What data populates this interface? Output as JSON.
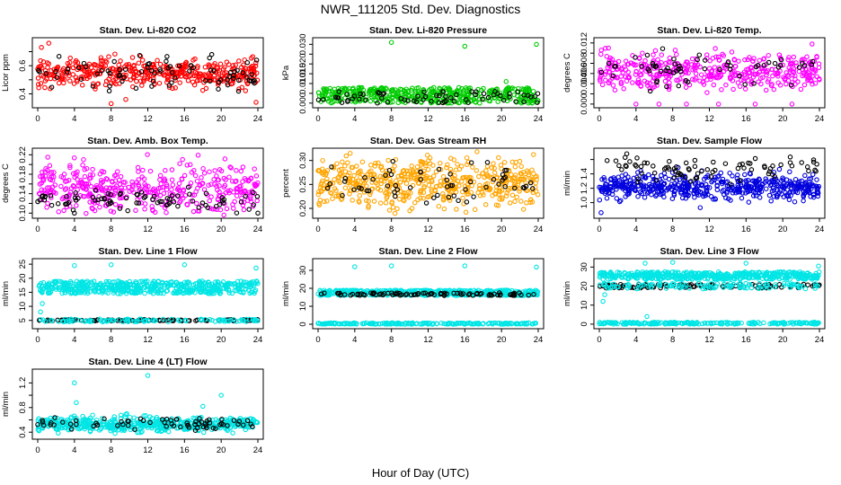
{
  "figure": {
    "title": "NWR_111205  Std. Dev. Diagnostics",
    "xlabel": "Hour of Day (UTC)"
  },
  "chart_data": [
    {
      "type": "scatter",
      "title": "Stan. Dev. Li-820 CO2",
      "ylabel": "Licor ppm",
      "xlim": [
        0,
        24
      ],
      "ylim": [
        0.32,
        0.78
      ],
      "xticks": [
        "0",
        "4",
        "8",
        "12",
        "16",
        "20",
        "24"
      ],
      "yticks": [
        0.4,
        0.5,
        0.6,
        0.7
      ],
      "ytick_labels": [
        "0.4",
        "",
        "0.6",
        ""
      ],
      "series": [
        {
          "color": "#ff0000",
          "center": 0.55,
          "spread": 0.05,
          "count": 420
        },
        {
          "color": "#000000",
          "center": 0.54,
          "spread": 0.06,
          "count": 80
        }
      ],
      "outliers": [
        {
          "x": 0.4,
          "y": 0.73,
          "color": "#ff0000"
        },
        {
          "x": 1.2,
          "y": 0.76,
          "color": "#ff0000"
        },
        {
          "x": 8.0,
          "y": 0.33,
          "color": "#ff0000"
        },
        {
          "x": 7.8,
          "y": 0.42,
          "color": "#000000"
        },
        {
          "x": 23.8,
          "y": 0.34,
          "color": "#ff0000"
        },
        {
          "x": 9.6,
          "y": 0.36,
          "color": "#ff0000"
        }
      ]
    },
    {
      "type": "scatter",
      "title": "Stan. Dev. Li-820 Pressure",
      "ylabel": "kPa",
      "xlim": [
        0,
        24
      ],
      "ylim": [
        -0.001,
        0.032
      ],
      "xticks": [
        "0",
        "4",
        "8",
        "12",
        "16",
        "20",
        "24"
      ],
      "yticks": [
        0.0,
        0.005,
        0.01,
        0.015,
        0.02,
        0.025,
        0.03
      ],
      "ytick_labels": [
        "0.000",
        "",
        "0.010",
        "0.015",
        "0.020",
        "",
        "0.030"
      ],
      "series": [
        {
          "color": "#00cc00",
          "band": [
            0.0,
            0.008
          ],
          "count": 420
        },
        {
          "color": "#000000",
          "band": [
            0.0,
            0.006
          ],
          "count": 70
        }
      ],
      "outliers": [
        {
          "x": 8.0,
          "y": 0.031,
          "color": "#00cc00"
        },
        {
          "x": 16.0,
          "y": 0.029,
          "color": "#00cc00"
        },
        {
          "x": 23.8,
          "y": 0.03,
          "color": "#00cc00"
        },
        {
          "x": 20.5,
          "y": 0.011,
          "color": "#00cc00"
        }
      ]
    },
    {
      "type": "scatter",
      "title": "Stan. Dev. Li-820 Temp.",
      "ylabel": "degrees C",
      "xlim": [
        0,
        24
      ],
      "ylim": [
        -0.0002,
        0.0125
      ],
      "xticks": [
        "0",
        "4",
        "8",
        "12",
        "16",
        "20",
        "24"
      ],
      "yticks": [
        0.0,
        0.002,
        0.004,
        0.006,
        0.008,
        0.01,
        0.012
      ],
      "ytick_labels": [
        "0.000",
        "",
        "0.004",
        "0.006",
        "0.008",
        "",
        "0.012"
      ],
      "series": [
        {
          "color": "#ff00ff",
          "center": 0.0065,
          "spread": 0.0018,
          "count": 420
        },
        {
          "color": "#000000",
          "center": 0.0065,
          "spread": 0.0015,
          "count": 60
        }
      ],
      "outliers": [
        {
          "x": 4.0,
          "y": 0.0,
          "color": "#ff00ff"
        },
        {
          "x": 6.5,
          "y": 0.0,
          "color": "#ff00ff"
        },
        {
          "x": 9.5,
          "y": 0.0,
          "color": "#ff00ff"
        },
        {
          "x": 13.0,
          "y": 0.0,
          "color": "#ff00ff"
        },
        {
          "x": 17.0,
          "y": 0.0,
          "color": "#ff00ff"
        },
        {
          "x": 21.0,
          "y": 0.0,
          "color": "#ff00ff"
        },
        {
          "x": 23.2,
          "y": 0.0118,
          "color": "#ff00ff"
        },
        {
          "x": 1.0,
          "y": 0.011,
          "color": "#ff00ff"
        }
      ]
    },
    {
      "type": "scatter",
      "title": "Stan. Dev. Amb. Box Temp.",
      "ylabel": "degrees C",
      "xlim": [
        0,
        24
      ],
      "ylim": [
        0.095,
        0.228
      ],
      "xticks": [
        "0",
        "4",
        "8",
        "12",
        "16",
        "20",
        "24"
      ],
      "yticks": [
        0.1,
        0.12,
        0.14,
        0.16,
        0.18,
        0.2,
        0.22
      ],
      "ytick_labels": [
        "0.10",
        "",
        "0.14",
        "",
        "0.18",
        "",
        "0.22"
      ],
      "series": [
        {
          "color": "#ff00ff",
          "center": 0.15,
          "spread": 0.025,
          "count": 420
        },
        {
          "color": "#000000",
          "center": 0.125,
          "spread": 0.01,
          "count": 80
        }
      ],
      "outliers": [
        {
          "x": 1.1,
          "y": 0.215,
          "color": "#ff00ff"
        },
        {
          "x": 5.0,
          "y": 0.21,
          "color": "#ff00ff"
        },
        {
          "x": 4.0,
          "y": 0.1,
          "color": "#000000"
        },
        {
          "x": 24.0,
          "y": 0.1,
          "color": "#000000"
        }
      ]
    },
    {
      "type": "scatter",
      "title": "Stan. Dev. Gas Stream RH",
      "ylabel": "percent",
      "xlim": [
        0,
        24
      ],
      "ylim": [
        0.185,
        0.32
      ],
      "xticks": [
        "0",
        "4",
        "8",
        "12",
        "16",
        "20",
        "24"
      ],
      "yticks": [
        0.2,
        0.25,
        0.3
      ],
      "ytick_labels": [
        "0.20",
        "0.25",
        "0.30"
      ],
      "series": [
        {
          "color": "#ffa500",
          "center": 0.255,
          "spread": 0.025,
          "count": 520
        },
        {
          "color": "#000000",
          "center": 0.255,
          "spread": 0.02,
          "count": 60
        }
      ],
      "outliers": [
        {
          "x": 0.5,
          "y": 0.3,
          "color": "#ffa500"
        },
        {
          "x": 3.5,
          "y": 0.315,
          "color": "#ffa500"
        },
        {
          "x": 7.8,
          "y": 0.196,
          "color": "#ffa500"
        },
        {
          "x": 10.0,
          "y": 0.195,
          "color": "#ffa500"
        },
        {
          "x": 22.4,
          "y": 0.198,
          "color": "#ffa500"
        }
      ]
    },
    {
      "type": "scatter",
      "title": "Stan. Dev. Sample Flow",
      "ylabel": "ml/min",
      "xlim": [
        0,
        24
      ],
      "ylim": [
        0.82,
        1.72
      ],
      "xticks": [
        "0",
        "4",
        "8",
        "12",
        "16",
        "20",
        "24"
      ],
      "yticks": [
        1.0,
        1.2,
        1.4,
        1.6
      ],
      "ytick_labels": [
        "1.0",
        "1.2",
        "1.4",
        ""
      ],
      "series": [
        {
          "color": "#0000dd",
          "center": 1.22,
          "spread": 0.09,
          "count": 520
        },
        {
          "color": "#000000",
          "center": 1.47,
          "spread": 0.08,
          "count": 80
        }
      ],
      "outliers": [
        {
          "x": 0.2,
          "y": 0.86,
          "color": "#0000dd"
        },
        {
          "x": 3.0,
          "y": 1.68,
          "color": "#000000"
        },
        {
          "x": 11.0,
          "y": 0.93,
          "color": "#0000dd"
        }
      ]
    },
    {
      "type": "scatter",
      "title": "Stan. Dev. Line 1 Flow",
      "ylabel": "ml/min",
      "xlim": [
        0,
        24
      ],
      "ylim": [
        3,
        26
      ],
      "xticks": [
        "0",
        "4",
        "8",
        "12",
        "16",
        "20",
        "24"
      ],
      "yticks": [
        5,
        10,
        15,
        20,
        25
      ],
      "ytick_labels": [
        "5",
        "10",
        "15",
        "20",
        "25"
      ],
      "series": [
        {
          "color": "#00e5e5",
          "band": [
            14.5,
            19.0
          ],
          "count": 520
        },
        {
          "color": "#000000",
          "band": [
            4.8,
            5.3
          ],
          "count": 100
        },
        {
          "color": "#00e5e5",
          "band": [
            4.5,
            5.5
          ],
          "count": 100
        }
      ],
      "outliers": [
        {
          "x": 4.0,
          "y": 24.5,
          "color": "#00e5e5"
        },
        {
          "x": 8.0,
          "y": 24.8,
          "color": "#00e5e5"
        },
        {
          "x": 16.0,
          "y": 24.8,
          "color": "#00e5e5"
        },
        {
          "x": 23.8,
          "y": 23.6,
          "color": "#00e5e5"
        },
        {
          "x": 0.3,
          "y": 8.0,
          "color": "#00e5e5"
        },
        {
          "x": 0.5,
          "y": 11.0,
          "color": "#00e5e5"
        }
      ]
    },
    {
      "type": "scatter",
      "title": "Stan. Dev. Line 2 Flow",
      "ylabel": "ml/min",
      "xlim": [
        0,
        24
      ],
      "ylim": [
        -1,
        35
      ],
      "xticks": [
        "0",
        "4",
        "8",
        "12",
        "16",
        "20",
        "24"
      ],
      "yticks": [
        0,
        10,
        20,
        30
      ],
      "ytick_labels": [
        "0",
        "10",
        "20",
        "30"
      ],
      "series": [
        {
          "color": "#00e5e5",
          "band": [
            16.0,
            19.0
          ],
          "count": 500
        },
        {
          "color": "#000000",
          "band": [
            16.0,
            17.5
          ],
          "count": 90
        },
        {
          "color": "#00e5e5",
          "band": [
            0.0,
            0.8
          ],
          "count": 200
        }
      ],
      "outliers": [
        {
          "x": 4.0,
          "y": 32.0,
          "color": "#00e5e5"
        },
        {
          "x": 8.0,
          "y": 32.5,
          "color": "#00e5e5"
        },
        {
          "x": 16.0,
          "y": 32.5,
          "color": "#00e5e5"
        },
        {
          "x": 23.8,
          "y": 31.8,
          "color": "#00e5e5"
        }
      ]
    },
    {
      "type": "scatter",
      "title": "Stan. Dev. Line 3 Flow",
      "ylabel": "ml/min",
      "xlim": [
        0,
        24
      ],
      "ylim": [
        -1,
        33
      ],
      "xticks": [
        "0",
        "4",
        "8",
        "12",
        "16",
        "20",
        "24"
      ],
      "yticks": [
        0,
        10,
        20,
        30
      ],
      "ytick_labels": [
        "0",
        "10",
        "20",
        "30"
      ],
      "series": [
        {
          "color": "#00e5e5",
          "band": [
            23.5,
            27.5
          ],
          "count": 460
        },
        {
          "color": "#000000",
          "band": [
            19.0,
            21.0
          ],
          "count": 110
        },
        {
          "color": "#00e5e5",
          "band": [
            18.5,
            21.5
          ],
          "count": 120
        },
        {
          "color": "#00e5e5",
          "band": [
            0.0,
            1.0
          ],
          "count": 200
        }
      ],
      "outliers": [
        {
          "x": 5.0,
          "y": 32.0,
          "color": "#00e5e5"
        },
        {
          "x": 8.0,
          "y": 32.5,
          "color": "#00e5e5"
        },
        {
          "x": 16.0,
          "y": 32.0,
          "color": "#00e5e5"
        },
        {
          "x": 23.9,
          "y": 30.5,
          "color": "#00e5e5"
        },
        {
          "x": 5.2,
          "y": 4.0,
          "color": "#00e5e5"
        },
        {
          "x": 0.4,
          "y": 12.0,
          "color": "#00e5e5"
        },
        {
          "x": 0.6,
          "y": 15.5,
          "color": "#00e5e5"
        }
      ]
    },
    {
      "type": "scatter",
      "title": "Stan. Dev. Line 4 (LT) Flow",
      "ylabel": "ml/min",
      "xlim": [
        0,
        24
      ],
      "ylim": [
        0.33,
        1.38
      ],
      "xticks": [
        "0",
        "4",
        "8",
        "12",
        "16",
        "20",
        "24"
      ],
      "yticks": [
        0.4,
        0.6,
        0.8,
        1.0,
        1.2
      ],
      "ytick_labels": [
        "0.4",
        "",
        "0.8",
        "",
        "1.2"
      ],
      "series": [
        {
          "color": "#00e5e5",
          "center": 0.53,
          "spread": 0.06,
          "count": 520
        },
        {
          "color": "#000000",
          "center": 0.55,
          "spread": 0.05,
          "count": 70
        }
      ],
      "outliers": [
        {
          "x": 4.0,
          "y": 1.2,
          "color": "#00e5e5"
        },
        {
          "x": 12.0,
          "y": 1.32,
          "color": "#00e5e5"
        },
        {
          "x": 20.0,
          "y": 1.0,
          "color": "#00e5e5"
        },
        {
          "x": 4.2,
          "y": 0.88,
          "color": "#00e5e5"
        },
        {
          "x": 18.0,
          "y": 0.82,
          "color": "#00e5e5"
        }
      ]
    }
  ]
}
